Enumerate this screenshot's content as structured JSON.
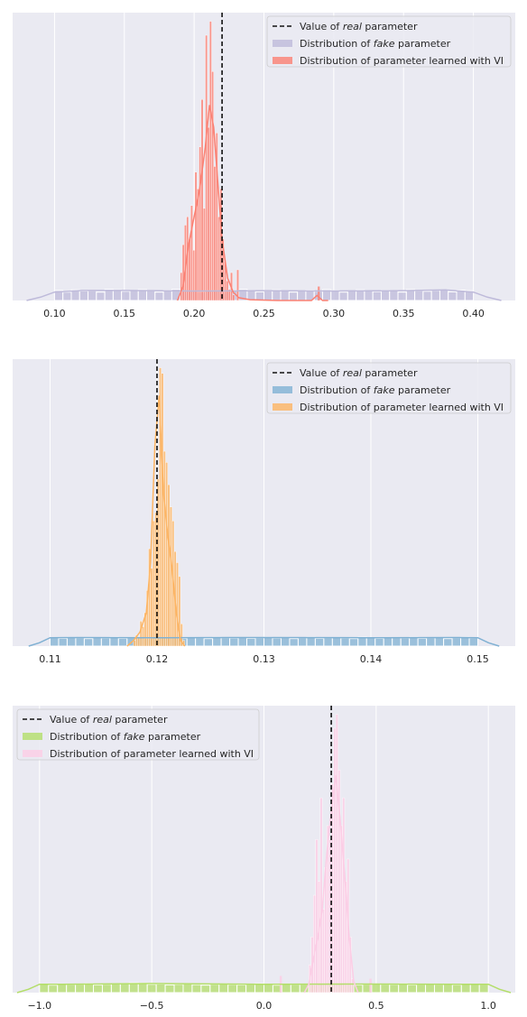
{
  "chart_data": [
    {
      "type": "histogram",
      "xlim": [
        0.07,
        0.43
      ],
      "ylim": [
        0,
        1
      ],
      "xticks": [
        "0.10",
        "0.15",
        "0.20",
        "0.25",
        "0.30",
        "0.35",
        "0.40"
      ],
      "xtick_values": [
        0.1,
        0.15,
        0.2,
        0.25,
        0.3,
        0.35,
        0.4
      ],
      "grid": true,
      "legend_position": "top-right",
      "legend": [
        {
          "prefix": "Value of ",
          "em": "real",
          "suffix": " parameter"
        },
        {
          "prefix": "Distribution of ",
          "em": "fake",
          "suffix": " parameter"
        },
        {
          "prefix": "Distribution of parameter learned with VI",
          "em": "",
          "suffix": ""
        }
      ],
      "real_value": 0.22,
      "colors": {
        "fake": "#bebada",
        "vi": "#fb8072",
        "fake_kde": "#bebada",
        "vi_kde": "#fb8072"
      },
      "fake": {
        "bin_start": 0.1,
        "bin_width": 0.006,
        "counts": [
          0.036,
          0.03,
          0.038,
          0.034,
          0.035,
          0.03,
          0.04,
          0.038,
          0.033,
          0.036,
          0.039,
          0.035,
          0.03,
          0.037,
          0.04,
          0.034,
          0.036,
          0.03,
          0.038,
          0.035,
          0.033,
          0.037,
          0.04,
          0.036,
          0.031,
          0.034,
          0.038,
          0.036,
          0.03,
          0.035,
          0.037,
          0.033,
          0.039,
          0.036,
          0.03,
          0.034,
          0.038,
          0.035,
          0.032,
          0.037,
          0.036,
          0.03,
          0.039,
          0.035,
          0.033,
          0.036,
          0.038,
          0.031,
          0.037,
          0.035
        ],
        "kde": {
          "x": [
            0.08,
            0.09,
            0.1,
            0.12,
            0.15,
            0.2,
            0.25,
            0.3,
            0.35,
            0.38,
            0.4,
            0.41,
            0.42
          ],
          "y": [
            0.0,
            0.012,
            0.03,
            0.036,
            0.036,
            0.034,
            0.035,
            0.034,
            0.035,
            0.038,
            0.03,
            0.012,
            0.0
          ]
        }
      },
      "vi": {
        "bin_start": 0.19,
        "bin_width": 0.0015,
        "counts": [
          0.1,
          0.2,
          0.27,
          0.3,
          0.22,
          0.34,
          0.18,
          0.46,
          0.4,
          0.55,
          0.72,
          0.33,
          0.95,
          0.62,
          1.0,
          0.82,
          0.48,
          0.6,
          0.3,
          0.4,
          0.22,
          0.14,
          0.07,
          0.04,
          0.1,
          0.02,
          0.0,
          0.11,
          0.0,
          0.0
        ],
        "outlier_bins": [
          {
            "x": 0.2885,
            "w": 0.0015,
            "v": 0.05
          }
        ],
        "kde": {
          "x": [
            0.188,
            0.192,
            0.196,
            0.2,
            0.204,
            0.208,
            0.211,
            0.214,
            0.217,
            0.22,
            0.224,
            0.228,
            0.232,
            0.24,
            0.26,
            0.284,
            0.288,
            0.292,
            0.296
          ],
          "y": [
            0.0,
            0.05,
            0.2,
            0.3,
            0.4,
            0.55,
            0.7,
            0.62,
            0.42,
            0.22,
            0.08,
            0.03,
            0.01,
            0.003,
            0.0,
            0.0,
            0.018,
            0.0,
            0.0
          ]
        }
      }
    },
    {
      "type": "histogram",
      "xlim": [
        0.1065,
        0.1535
      ],
      "ylim": [
        0,
        1
      ],
      "xticks": [
        "0.11",
        "0.12",
        "0.13",
        "0.14",
        "0.15"
      ],
      "xtick_values": [
        0.11,
        0.12,
        0.13,
        0.14,
        0.15
      ],
      "grid": true,
      "legend_position": "top-right",
      "legend": [
        {
          "prefix": "Value of ",
          "em": "real",
          "suffix": " parameter"
        },
        {
          "prefix": "Distribution of ",
          "em": "fake",
          "suffix": " parameter"
        },
        {
          "prefix": "Distribution of parameter learned with VI",
          "em": "",
          "suffix": ""
        }
      ],
      "real_value": 0.12,
      "colors": {
        "fake": "#80b1d3",
        "vi": "#fdb462",
        "fake_kde": "#80b1d3",
        "vi_kde": "#fdb462"
      },
      "fake": {
        "bin_start": 0.11,
        "bin_width": 0.0008,
        "counts": [
          0.03,
          0.028,
          0.032,
          0.03,
          0.027,
          0.031,
          0.029,
          0.032,
          0.028,
          0.03,
          0.031,
          0.027,
          0.03,
          0.032,
          0.029,
          0.028,
          0.031,
          0.03,
          0.027,
          0.032,
          0.03,
          0.029,
          0.031,
          0.028,
          0.03,
          0.032,
          0.029,
          0.031,
          0.027,
          0.03,
          0.032,
          0.028,
          0.03,
          0.031,
          0.029,
          0.027,
          0.032,
          0.03,
          0.028,
          0.031,
          0.03,
          0.029,
          0.032,
          0.028,
          0.03,
          0.031,
          0.027,
          0.03,
          0.032,
          0.029
        ],
        "kde": {
          "x": [
            0.108,
            0.109,
            0.11,
            0.112,
            0.12,
            0.13,
            0.14,
            0.148,
            0.15,
            0.151,
            0.152
          ],
          "y": [
            0.0,
            0.012,
            0.03,
            0.031,
            0.03,
            0.031,
            0.03,
            0.031,
            0.03,
            0.012,
            0.0
          ]
        }
      },
      "vi": {
        "bin_start": 0.1178,
        "bin_width": 0.0002,
        "counts": [
          0.02,
          0.04,
          0.03,
          0.09,
          0.07,
          0.12,
          0.2,
          0.35,
          0.28,
          0.45,
          0.48,
          0.6,
          1.0,
          0.98,
          0.7,
          0.66,
          0.58,
          0.5,
          0.45,
          0.34,
          0.3,
          0.25,
          0.08,
          0.02
        ],
        "outlier_bins": [],
        "kde": {
          "x": [
            0.1172,
            0.1178,
            0.1184,
            0.119,
            0.1194,
            0.1198,
            0.1202,
            0.1206,
            0.121,
            0.1214,
            0.1218,
            0.1222,
            0.1226
          ],
          "y": [
            0.0,
            0.02,
            0.05,
            0.12,
            0.3,
            0.72,
            0.9,
            0.55,
            0.4,
            0.28,
            0.12,
            0.02,
            0.0
          ]
        }
      }
    },
    {
      "type": "histogram",
      "xlim": [
        -1.12,
        1.12
      ],
      "ylim": [
        0,
        1
      ],
      "xticks": [
        "−1.0",
        "−0.5",
        "0.0",
        "0.5",
        "1.0"
      ],
      "xtick_values": [
        -1.0,
        -0.5,
        0.0,
        0.5,
        1.0
      ],
      "grid": true,
      "legend_position": "top-left",
      "legend": [
        {
          "prefix": "Value of ",
          "em": "real",
          "suffix": " parameter"
        },
        {
          "prefix": "Distribution of ",
          "em": "fake",
          "suffix": " parameter"
        },
        {
          "prefix": "Distribution of parameter learned with VI",
          "em": "",
          "suffix": ""
        }
      ],
      "real_value": 0.3,
      "colors": {
        "fake": "#b3de69",
        "vi": "#fccde5",
        "fake_kde": "#b3de69",
        "vi_kde": "#fccde5"
      },
      "fake": {
        "bin_start": -1.0,
        "bin_width": 0.04,
        "counts": [
          0.03,
          0.027,
          0.031,
          0.029,
          0.03,
          0.032,
          0.028,
          0.03,
          0.031,
          0.033,
          0.035,
          0.034,
          0.03,
          0.031,
          0.028,
          0.03,
          0.032,
          0.029,
          0.027,
          0.03,
          0.031,
          0.029,
          0.028,
          0.03,
          0.032,
          0.03,
          0.027,
          0.031,
          0.029,
          0.03,
          0.028,
          0.032,
          0.03,
          0.031,
          0.029,
          0.028,
          0.03,
          0.031,
          0.03,
          0.029,
          0.032,
          0.028,
          0.03,
          0.031,
          0.029,
          0.03,
          0.028,
          0.031,
          0.03,
          0.029
        ],
        "kde": {
          "x": [
            -1.1,
            -1.05,
            -1.0,
            -0.9,
            -0.5,
            0.0,
            0.5,
            0.9,
            1.0,
            1.05,
            1.1
          ],
          "y": [
            0.0,
            0.012,
            0.03,
            0.03,
            0.033,
            0.03,
            0.031,
            0.03,
            0.03,
            0.012,
            0.0
          ]
        }
      },
      "vi": {
        "bin_start": 0.2,
        "bin_width": 0.01,
        "counts": [
          0.1,
          0.2,
          0.35,
          0.55,
          0.4,
          0.7,
          0.3,
          0.45,
          0.6,
          0.55,
          0.75,
          0.95,
          1.0,
          0.8,
          0.6,
          0.7,
          0.4,
          0.48,
          0.2,
          0.05
        ],
        "outlier_bins": [
          {
            "x": 0.07,
            "w": 0.01,
            "v": 0.06
          },
          {
            "x": 0.47,
            "w": 0.01,
            "v": 0.05
          }
        ],
        "kde": {
          "x": [
            0.18,
            0.2,
            0.22,
            0.24,
            0.26,
            0.28,
            0.3,
            0.32,
            0.34,
            0.36,
            0.38,
            0.4,
            0.42
          ],
          "y": [
            0.0,
            0.03,
            0.12,
            0.2,
            0.3,
            0.5,
            0.65,
            0.78,
            0.62,
            0.42,
            0.2,
            0.04,
            0.0
          ]
        }
      }
    }
  ]
}
